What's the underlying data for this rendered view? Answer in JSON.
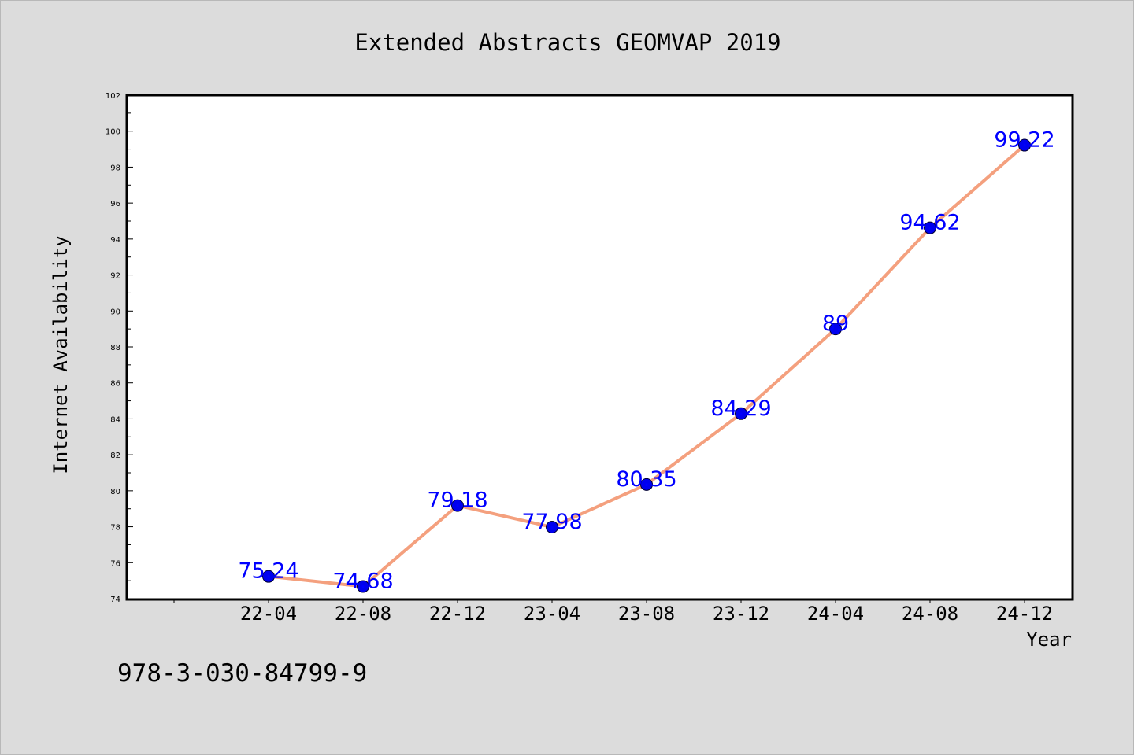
{
  "chart_data": {
    "type": "line",
    "title": "Extended Abstracts GEOMVAP 2019",
    "xlabel": "Year",
    "ylabel": "Internet Availability",
    "categories": [
      "22-04",
      "22-08",
      "22-12",
      "23-04",
      "23-08",
      "23-12",
      "24-04",
      "24-08",
      "24-12"
    ],
    "values": [
      75.24,
      74.68,
      79.18,
      77.98,
      80.35,
      84.29,
      89,
      94.62,
      99.22
    ],
    "data_labels": [
      "75.24",
      "74.68",
      "79.18",
      "77.98",
      "80.35",
      "84.29",
      "89",
      "94.62",
      "99.22"
    ],
    "ylim": [
      74,
      102
    ],
    "yticks": [
      "74",
      "76",
      "78",
      "80",
      "82",
      "84",
      "86",
      "88",
      "90",
      "92",
      "94",
      "96",
      "98",
      "100",
      "102"
    ],
    "grid": false,
    "line_color": "#f4a07e",
    "marker_color": "#0000ee",
    "label_color": "#0000ff"
  },
  "footer": {
    "isbn": "978-3-030-84799-9"
  }
}
